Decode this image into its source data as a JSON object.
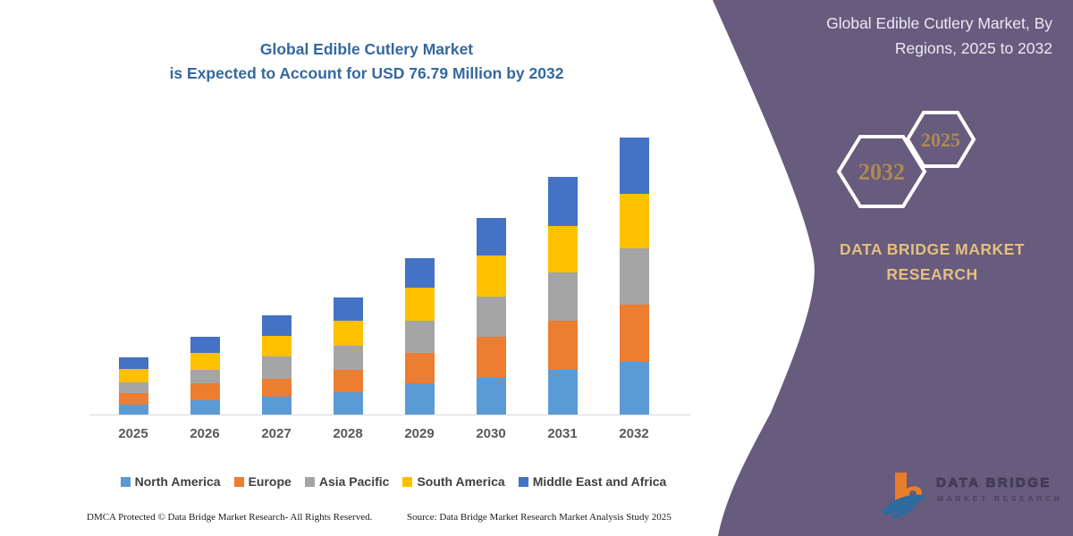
{
  "chart": {
    "title_line1": "Global Edible Cutlery Market",
    "title_line2": "is Expected to Account for USD 76.79 Million by 2032",
    "footer_left": "DMCA Protected © Data Bridge Market Research-  All Rights Reserved.",
    "footer_source": "Source: Data Bridge Market Research  Market Analysis Study 2025",
    "title_color": "#35689D"
  },
  "chart_data": {
    "type": "bar",
    "stacked": true,
    "unit": "USD Million",
    "title": "Global Edible Cutlery Market is Expected to Account for USD 76.79 Million by 2032",
    "xlabel": "",
    "ylabel": "",
    "ylim": [
      0,
      80
    ],
    "grid": false,
    "legend_position": "bottom",
    "total_2032": 76.79,
    "categories": [
      "2025",
      "2026",
      "2027",
      "2028",
      "2029",
      "2030",
      "2031",
      "2032"
    ],
    "series": [
      {
        "name": "North America",
        "color": "#5B9BD5",
        "values": [
          2.8,
          4.0,
          4.9,
          6.3,
          8.6,
          10.2,
          12.5,
          14.7
        ]
      },
      {
        "name": "Europe",
        "color": "#ED7D31",
        "values": [
          3.1,
          4.8,
          5.1,
          6.2,
          8.6,
          11.4,
          13.6,
          15.9
        ]
      },
      {
        "name": "Asia Pacific",
        "color": "#A5A5A5",
        "values": [
          3.0,
          3.7,
          6.0,
          6.7,
          8.9,
          11.1,
          13.4,
          15.5
        ]
      },
      {
        "name": "South America",
        "color": "#FFC000",
        "values": [
          3.8,
          4.7,
          5.7,
          6.8,
          9.2,
          11.4,
          12.8,
          15.1
        ]
      },
      {
        "name": "Middle East and Africa",
        "color": "#4472C4",
        "values": [
          3.3,
          4.3,
          5.8,
          6.6,
          8.2,
          10.5,
          13.5,
          15.6
        ]
      }
    ]
  },
  "side_panel": {
    "header": "Global Edible Cutlery Market, By Regions, 2025 to 2032",
    "hexagon_large_year": "2032",
    "hexagon_small_year": "2025",
    "brand_text": "DATA BRIDGE MARKET RESEARCH",
    "logo_name": "DATA BRIDGE",
    "logo_sub": "MARKET RESEARCH",
    "colors": {
      "background_purple": "#675B7E",
      "accent_gold": "#E5BF7E",
      "hex_year_gold": "#AD8A50"
    }
  }
}
